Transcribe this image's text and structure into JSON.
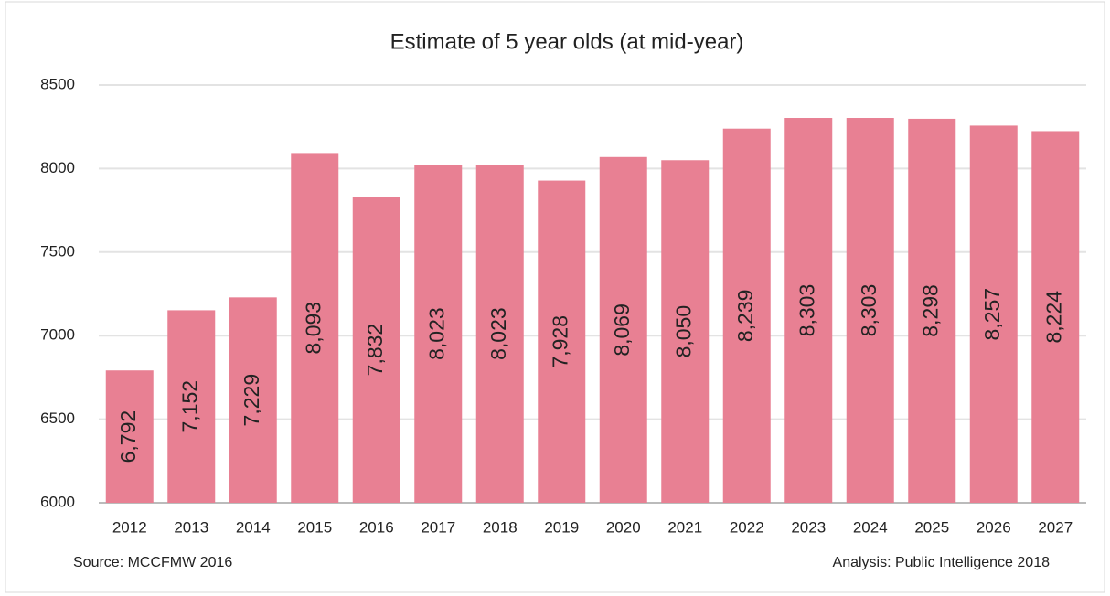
{
  "chart_data": {
    "type": "bar",
    "title": "Estimate of 5 year olds (at mid-year)",
    "categories": [
      "2012",
      "2013",
      "2014",
      "2015",
      "2016",
      "2017",
      "2018",
      "2019",
      "2020",
      "2021",
      "2022",
      "2023",
      "2024",
      "2025",
      "2026",
      "2027"
    ],
    "values": [
      6792,
      7152,
      7229,
      8093,
      7832,
      8023,
      8023,
      7928,
      8069,
      8050,
      8239,
      8303,
      8303,
      8298,
      8257,
      8224
    ],
    "value_labels": [
      "6,792",
      "7,152",
      "7,229",
      "8,093",
      "7,832",
      "8,023",
      "8,023",
      "7,928",
      "8,069",
      "8,050",
      "8,239",
      "8,303",
      "8,303",
      "8,298",
      "8,257",
      "8,224"
    ],
    "color": "#e88093",
    "ylim": [
      6000,
      8500
    ],
    "yticks": [
      6000,
      6500,
      7000,
      7500,
      8000,
      8500
    ],
    "grid": true,
    "source": "Source: MCCFMW 2016",
    "analysis": "Analysis: Public Intelligence 2018"
  }
}
